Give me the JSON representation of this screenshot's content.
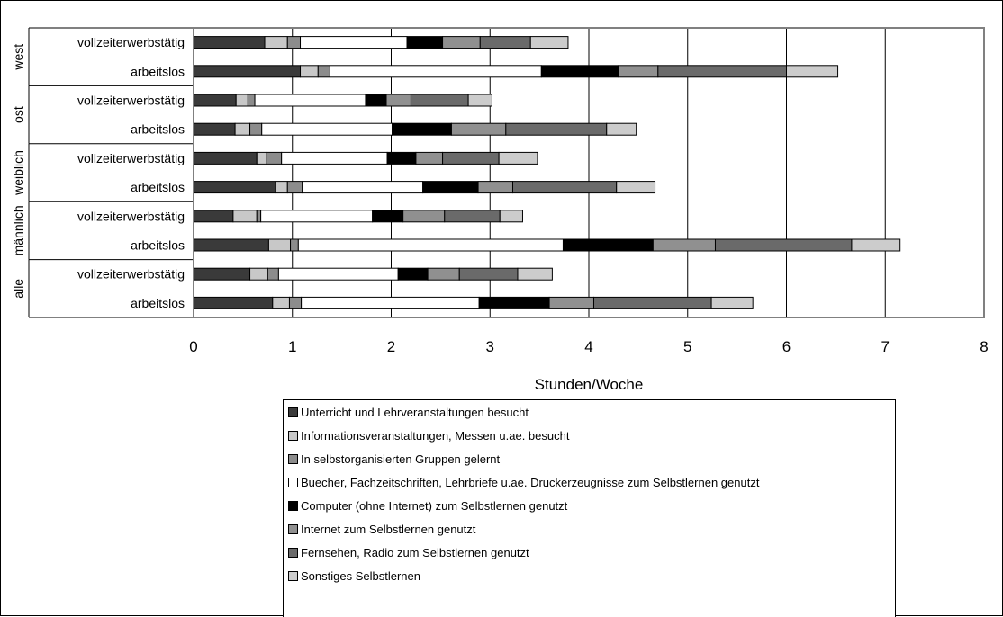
{
  "chart_data": {
    "type": "bar",
    "orientation": "horizontal",
    "stacked": true,
    "xlabel": "Stunden/Woche",
    "xlim": [
      0,
      8
    ],
    "xticks": [
      "0",
      "1",
      "2",
      "3",
      "4",
      "5",
      "6",
      "7",
      "8"
    ],
    "grid": "vertical",
    "legend_position": "bottom",
    "groups": [
      {
        "label": "west",
        "rows": [
          "vollzeiterwerbstätig",
          "arbeitslos"
        ]
      },
      {
        "label": "ost",
        "rows": [
          "vollzeiterwerbstätig",
          "arbeitslos"
        ]
      },
      {
        "label": "weiblich",
        "rows": [
          "vollzeiterwerbstätig",
          "arbeitslos"
        ]
      },
      {
        "label": "männlich",
        "rows": [
          "vollzeiterwerbstätig",
          "arbeitslos"
        ]
      },
      {
        "label": "alle",
        "rows": [
          "vollzeiterwerbstätig",
          "arbeitslos"
        ]
      }
    ],
    "series": [
      {
        "name": "Unterricht und Lehrveranstaltungen besucht",
        "color": "#3a3a3a",
        "values": [
          0.72,
          1.08,
          0.43,
          0.42,
          0.64,
          0.83,
          0.4,
          0.76,
          0.57,
          0.8
        ]
      },
      {
        "name": "Informationsveranstaltungen, Messen u.ae. besucht",
        "color": "#c8c8c8",
        "values": [
          0.23,
          0.18,
          0.12,
          0.15,
          0.1,
          0.12,
          0.24,
          0.22,
          0.18,
          0.17
        ]
      },
      {
        "name": "In selbstorganisierten Gruppen gelernt",
        "color": "#8c8c8c",
        "values": [
          0.13,
          0.12,
          0.07,
          0.12,
          0.15,
          0.15,
          0.04,
          0.08,
          0.11,
          0.12
        ]
      },
      {
        "name": "Buecher, Fachzeitschriften, Lehrbriefe u.ae. Druckerzeugnisse zum Selbstlernen genutzt",
        "color": "#ffffff",
        "values": [
          1.08,
          2.14,
          1.12,
          1.32,
          1.07,
          1.22,
          1.13,
          2.68,
          1.21,
          1.8
        ]
      },
      {
        "name": "Computer (ohne Internet) zum Selbstlernen genutzt",
        "color": "#000000",
        "values": [
          0.36,
          0.78,
          0.21,
          0.6,
          0.29,
          0.56,
          0.31,
          0.91,
          0.3,
          0.71
        ]
      },
      {
        "name": "Internet zum Selbstlernen genutzt",
        "color": "#909090",
        "values": [
          0.38,
          0.4,
          0.25,
          0.55,
          0.27,
          0.35,
          0.42,
          0.63,
          0.32,
          0.45
        ]
      },
      {
        "name": "Fernsehen, Radio zum Selbstlernen genutzt",
        "color": "#6a6a6a",
        "values": [
          0.51,
          1.3,
          0.58,
          1.02,
          0.57,
          1.05,
          0.56,
          1.38,
          0.59,
          1.19
        ]
      },
      {
        "name": "Sonstiges Selbstlernen",
        "color": "#cccccc",
        "values": [
          0.38,
          0.52,
          0.24,
          0.3,
          0.39,
          0.39,
          0.23,
          0.49,
          0.35,
          0.42
        ]
      }
    ]
  }
}
